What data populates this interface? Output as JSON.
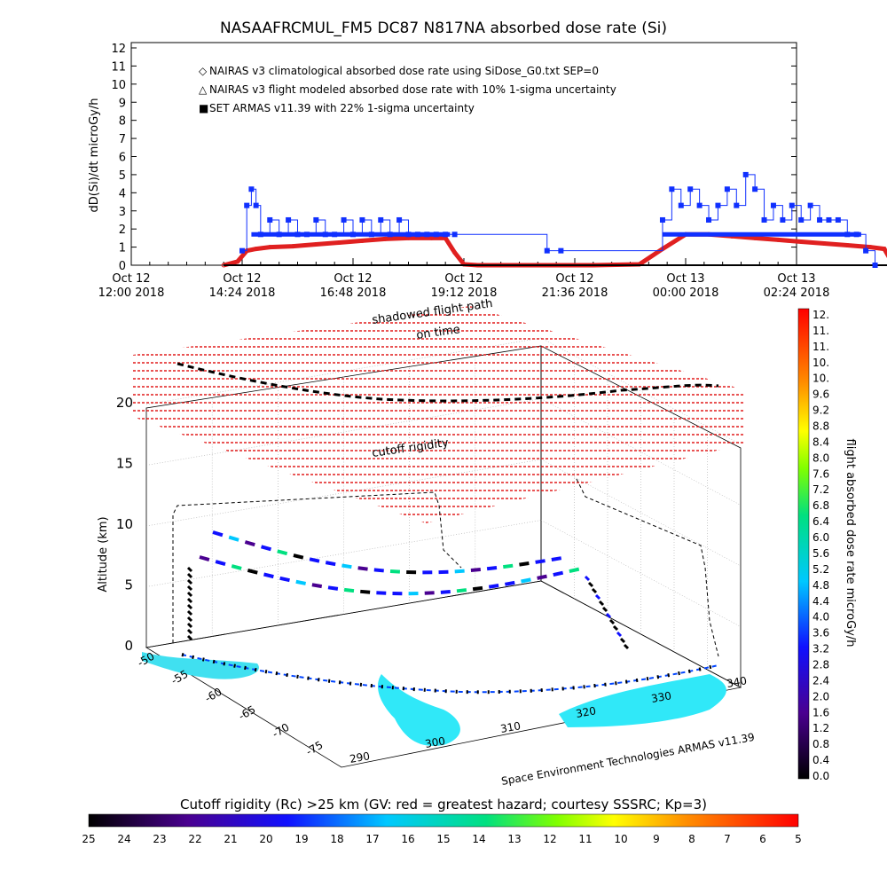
{
  "title": "NASAAFRCMUL_FM5 DC87 N817NA absorbed dose rate (Si)",
  "chart_data": [
    {
      "type": "line",
      "ylabel": "dD(Si)/dt microGy/h",
      "ylim": [
        0,
        12
      ],
      "y_ticks": [
        "0",
        "1",
        "2",
        "3",
        "4",
        "5",
        "6",
        "7",
        "8",
        "9",
        "10",
        "11",
        "12"
      ],
      "x_ticks": [
        {
          "line1": "Oct 12",
          "line2": "12:00 2018"
        },
        {
          "line1": "Oct 12",
          "line2": "14:24 2018"
        },
        {
          "line1": "Oct 12",
          "line2": "16:48 2018"
        },
        {
          "line1": "Oct 12",
          "line2": "19:12 2018"
        },
        {
          "line1": "Oct 12",
          "line2": "21:36 2018"
        },
        {
          "line1": "Oct 13",
          "line2": "00:00 2018"
        },
        {
          "line1": "Oct 13",
          "line2": "02:24 2018"
        }
      ],
      "legend": [
        {
          "marker": "◇",
          "color": "#e02020",
          "label": "NAIRAS v3 climatological absorbed dose rate using SiDose_G0.txt SEP=0"
        },
        {
          "marker": "△",
          "color": "#000000",
          "label": "NAIRAS v3 flight modeled absorbed dose rate with 10% 1-sigma uncertainty"
        },
        {
          "marker": "■",
          "color": "#1030ff",
          "label": "SET ARMAS v11.39 with 22% 1-sigma uncertainty"
        }
      ],
      "legend_placement": "top-left",
      "series": [
        {
          "name": "NAIRAS v3 climatological absorbed dose rate using SiDose_G0.txt SEP=0",
          "color": "#e02020",
          "x_hours": [
            2.0,
            2.3,
            2.5,
            2.7,
            3.0,
            3.5,
            4.0,
            4.5,
            5.0,
            5.5,
            6.0,
            6.5,
            6.8,
            7.0,
            7.2,
            7.5,
            8.0,
            9.0,
            10.0,
            11.0,
            11.5,
            12.0,
            12.5,
            13.0,
            13.5,
            14.0,
            14.5,
            15.0,
            15.5,
            16.0,
            16.3,
            16.5
          ],
          "y": [
            0,
            0.2,
            0.8,
            0.9,
            1.0,
            1.05,
            1.15,
            1.25,
            1.35,
            1.45,
            1.5,
            1.5,
            1.5,
            0.7,
            0.05,
            0,
            0,
            0,
            0,
            0.05,
            0.9,
            1.7,
            1.7,
            1.6,
            1.5,
            1.4,
            1.3,
            1.2,
            1.1,
            1.0,
            0.9,
            0
          ]
        },
        {
          "name": "NAIRAS v3 flight modeled absorbed dose rate with 10% 1-sigma uncertainty",
          "color": "#000000",
          "x_hours": [
            2.0,
            16.5
          ],
          "y": [
            0,
            0
          ]
        },
        {
          "name": "SET ARMAS v11.39 with 22% 1-sigma uncertainty",
          "color": "#1030ff",
          "x_hours": [
            2.4,
            2.5,
            2.6,
            2.7,
            2.8,
            3.0,
            3.2,
            3.4,
            3.6,
            3.8,
            4.0,
            4.2,
            4.4,
            4.6,
            4.8,
            5.0,
            5.2,
            5.4,
            5.6,
            5.8,
            6.0,
            6.2,
            6.4,
            6.6,
            6.8,
            7.0,
            9.0,
            9.3,
            11.5,
            11.7,
            11.9,
            12.1,
            12.3,
            12.5,
            12.7,
            12.9,
            13.1,
            13.3,
            13.5,
            13.7,
            13.9,
            14.1,
            14.3,
            14.5,
            14.7,
            14.9,
            15.1,
            15.3,
            15.5,
            15.7,
            15.9,
            16.1
          ],
          "y": [
            0.8,
            3.3,
            4.2,
            3.3,
            1.7,
            2.5,
            1.7,
            2.5,
            1.7,
            1.7,
            2.5,
            1.7,
            1.7,
            2.5,
            1.7,
            2.5,
            1.7,
            2.5,
            1.7,
            2.5,
            1.7,
            1.7,
            1.7,
            1.7,
            1.7,
            1.7,
            0.8,
            0.8,
            2.5,
            4.2,
            3.3,
            4.2,
            3.3,
            2.5,
            3.3,
            4.2,
            3.3,
            5.0,
            4.2,
            2.5,
            3.3,
            2.5,
            3.3,
            2.5,
            3.3,
            2.5,
            2.5,
            2.5,
            1.7,
            1.7,
            0.8,
            0.0
          ]
        }
      ]
    },
    {
      "type": "scatter",
      "zlabel": "Altitude (km)",
      "z_ticks": [
        "0",
        "5",
        "10",
        "15",
        "20"
      ],
      "lat_ticks": [
        "-50",
        "-55",
        "-60",
        "-65",
        "-70",
        "-75"
      ],
      "lon_ticks": [
        "290",
        "300",
        "310",
        "320",
        "330",
        "340"
      ],
      "annotations": [
        "shadowed flight path",
        "on time",
        "cutoff rigidity"
      ]
    }
  ],
  "colorbar_right": {
    "label": "flight absorbed dose rate microGy/h",
    "ticks": [
      "12.",
      "11.",
      "11.",
      "10.",
      "10.",
      "9.6",
      "9.2",
      "8.8",
      "8.4",
      "8.0",
      "7.6",
      "7.2",
      "6.8",
      "6.4",
      "6.0",
      "5.6",
      "5.2",
      "4.8",
      "4.4",
      "4.0",
      "3.6",
      "3.2",
      "2.8",
      "2.4",
      "2.0",
      "1.6",
      "1.2",
      "0.8",
      "0.4",
      "0.0"
    ]
  },
  "credit": "Space Environment Technologies ARMAS v11.39",
  "colorbar_bottom": {
    "label": "Cutoff rigidity (Rc) >25 km (GV: red = greatest hazard; courtesy SSSRC; Kp=3)",
    "ticks": [
      "25",
      "24",
      "23",
      "22",
      "21",
      "20",
      "19",
      "18",
      "17",
      "16",
      "15",
      "14",
      "13",
      "12",
      "11",
      "10",
      "9",
      "8",
      "7",
      "6",
      "5"
    ]
  }
}
